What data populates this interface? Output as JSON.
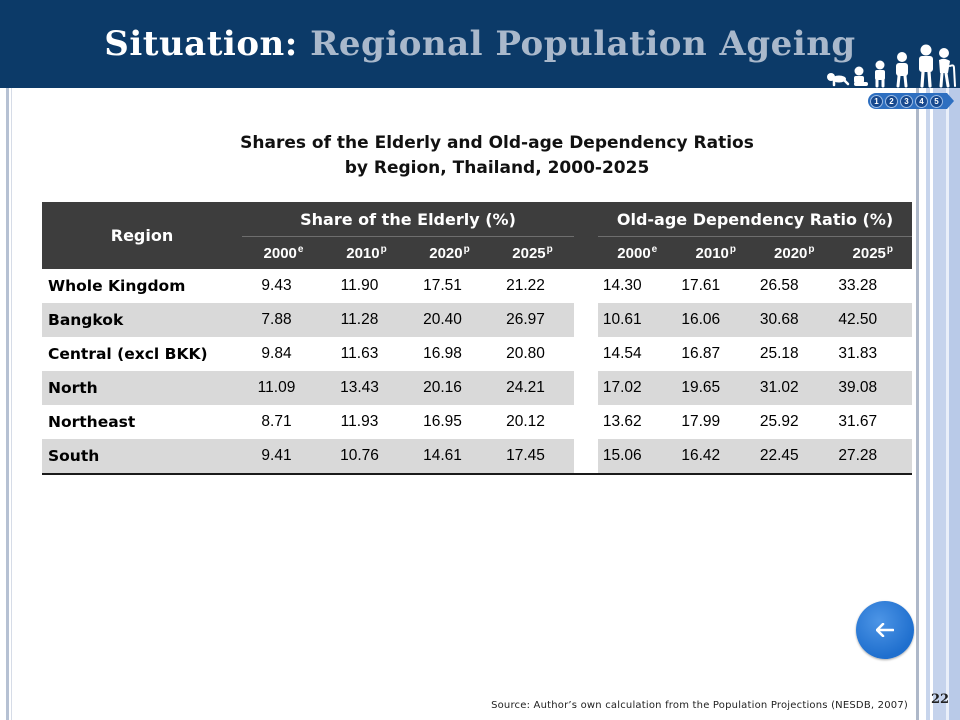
{
  "theme": {
    "header_bg": "#0c3a68",
    "title_main": "#ffffff",
    "title_accent": "#a9b8cb",
    "table_header_bg": "#3d3d3d",
    "row_shade": "#d9d9d9",
    "button_blue": "#1f6fce",
    "nav_blue": "#2e6fc0"
  },
  "icons": {
    "header_illustration": "ageing-stages-icon",
    "back_button": "left-arrow-icon"
  },
  "header": {
    "title_part1": "Situation:",
    "title_part2": "Regional Population Ageing"
  },
  "step_nav": {
    "steps": [
      "1",
      "2",
      "3",
      "4",
      "5"
    ]
  },
  "subtitle": {
    "line1": "Shares of the Elderly and Old-age Dependency Ratios",
    "line2": "by Region, Thailand, 2000-2025"
  },
  "table": {
    "region_header": "Region",
    "groups": [
      "Share of the Elderly (%)",
      "Old-age Dependency Ratio (%)"
    ],
    "years": [
      {
        "year": "2000",
        "mark": "e"
      },
      {
        "year": "2010",
        "mark": "p"
      },
      {
        "year": "2020",
        "mark": "p"
      },
      {
        "year": "2025",
        "mark": "p"
      }
    ],
    "rows": [
      {
        "region": "Whole Kingdom",
        "elderly": [
          "9.43",
          "11.90",
          "17.51",
          "21.22"
        ],
        "dependency": [
          "14.30",
          "17.61",
          "26.58",
          "33.28"
        ]
      },
      {
        "region": "Bangkok",
        "elderly": [
          "7.88",
          "11.28",
          "20.40",
          "26.97"
        ],
        "dependency": [
          "10.61",
          "16.06",
          "30.68",
          "42.50"
        ]
      },
      {
        "region": "Central (excl BKK)",
        "elderly": [
          "9.84",
          "11.63",
          "16.98",
          "20.80"
        ],
        "dependency": [
          "14.54",
          "16.87",
          "25.18",
          "31.83"
        ]
      },
      {
        "region": "North",
        "elderly": [
          "11.09",
          "13.43",
          "20.16",
          "24.21"
        ],
        "dependency": [
          "17.02",
          "19.65",
          "31.02",
          "39.08"
        ]
      },
      {
        "region": "Northeast",
        "elderly": [
          "8.71",
          "11.93",
          "16.95",
          "20.12"
        ],
        "dependency": [
          "13.62",
          "17.99",
          "25.92",
          "31.67"
        ]
      },
      {
        "region": "South",
        "elderly": [
          "9.41",
          "10.76",
          "14.61",
          "17.45"
        ],
        "dependency": [
          "15.06",
          "16.42",
          "22.45",
          "27.28"
        ]
      }
    ]
  },
  "footer": {
    "source": "Source: Author’s own calculation from the Population Projections (NESDB, 2007)",
    "page_number": "22"
  }
}
